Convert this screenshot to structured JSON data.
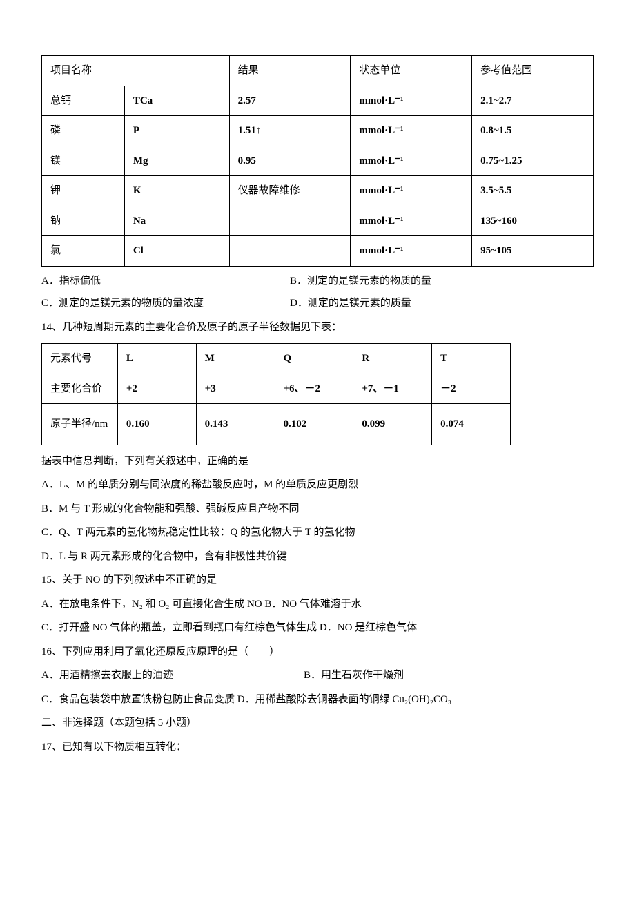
{
  "table1": {
    "header": {
      "c1": "项目名称",
      "c3": "结果",
      "c4": "状态单位",
      "c5": "参考值范围"
    },
    "rows": [
      {
        "name": "总钙",
        "sym": "TCa",
        "result": "2.57",
        "unit": "mmol·L⁻¹",
        "range": "2.1~2.7"
      },
      {
        "name": "磷",
        "sym": "P",
        "result": "1.51↑",
        "unit": "mmol·L⁻¹",
        "range": "0.8~1.5"
      },
      {
        "name": "镁",
        "sym": "Mg",
        "result": "0.95",
        "unit": "mmol·L⁻¹",
        "range": "0.75~1.25"
      },
      {
        "name": "钾",
        "sym": "K",
        "result": "仪器故障维修",
        "unit": "mmol·L⁻¹",
        "range": "3.5~5.5"
      },
      {
        "name": "钠",
        "sym": "Na",
        "result": "",
        "unit": "mmol·L⁻¹",
        "range": "135~160"
      },
      {
        "name": "氯",
        "sym": "Cl",
        "result": "",
        "unit": "mmol·L⁻¹",
        "range": "95~105"
      }
    ]
  },
  "q13_opts": {
    "a": "A．指标偏低",
    "b": "B．测定的是镁元素的物质的量",
    "c": "C．测定的是镁元素的物质的量浓度",
    "d": "D．测定的是镁元素的质量"
  },
  "q14": {
    "stem": "14、几种短周期元素的主要化合价及原子的原子半径数据见下表：",
    "table": {
      "h": {
        "c0": "元素代号",
        "c1": "L",
        "c2": "M",
        "c3": "Q",
        "c4": "R",
        "c5": "T"
      },
      "r1": {
        "c0": "主要化合价",
        "c1": "+2",
        "c2": "+3",
        "c3": "+6、－2",
        "c4": "+7、－1",
        "c5": "－2"
      },
      "r2": {
        "c0": "原子半径/nm",
        "c1": "0.160",
        "c2": "0.143",
        "c3": "0.102",
        "c4": "0.099",
        "c5": "0.074"
      }
    },
    "sub": "据表中信息判断，下列有关叙述中，正确的是",
    "a": "A．L、M 的单质分别与同浓度的稀盐酸反应时，M 的单质反应更剧烈",
    "b": "B．M 与 T 形成的化合物能和强酸、强碱反应且产物不同",
    "c": "C．Q、T 两元素的氢化物热稳定性比较：Q 的氢化物大于 T 的氢化物",
    "d": "D．L 与 R 两元素形成的化合物中，含有非极性共价键"
  },
  "q15": {
    "stem": "15、关于 NO 的下列叙述中不正确的是",
    "ab": "A．在放电条件下，N₂ 和 O₂ 可直接化合生成 NO    B．NO 气体难溶于水",
    "cd": "C．打开盛 NO 气体的瓶盖，立即看到瓶口有红棕色气体生成    D．NO 是红棕色气体"
  },
  "q16": {
    "stem": "16、下列应用利用了氧化还原反应原理的是（　　）",
    "a": "A．用酒精擦去衣服上的油迹",
    "b": "B．用生石灰作干燥剂",
    "c_pre": "C．食品包装袋中放置铁粉包防止食品变质    D．用稀盐酸除去铜器表面的铜绿 ",
    "formula": "Cu₂(OH)₂CO₃"
  },
  "section2": "二、非选择题（本题包括 5 小题）",
  "q17": "17、已知有以下物质相互转化："
}
